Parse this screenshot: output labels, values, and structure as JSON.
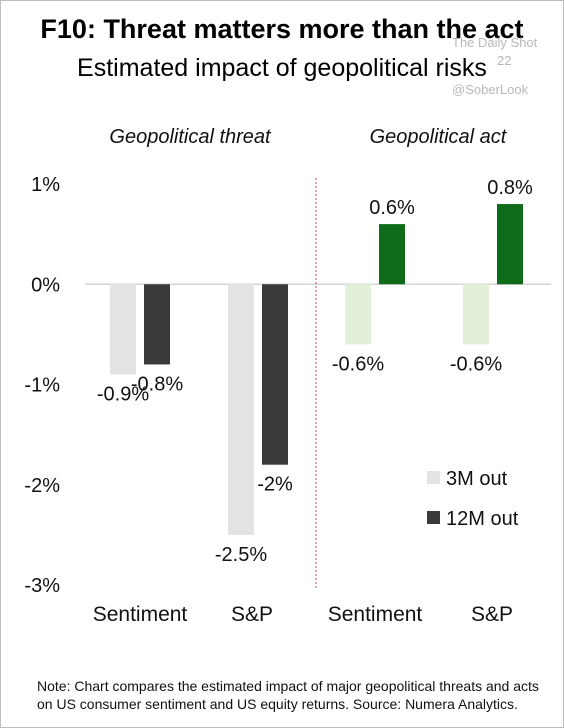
{
  "title": "F10: Threat matters more than the act",
  "subtitle": "Estimated impact of geopolitical risks",
  "watermark": {
    "source": "The Daily Shot",
    "handle": "@SoberLook",
    "partial_date": "22"
  },
  "note": "Note: Chart compares the estimated impact of major geopolitical threats and acts on US consumer sentiment and US equity returns. Source: Numera Analytics.",
  "colors": {
    "threat_3m": "#e3e3e3",
    "threat_12m": "#3a3a3a",
    "act_3m": "#e2f0d9",
    "act_12m": "#0e6b1a",
    "divider": "#c0504d"
  },
  "chart_data": {
    "type": "bar",
    "yticks": [
      "1%",
      "0%",
      "-1%",
      "-2%",
      "-3%"
    ],
    "ylim": [
      -3,
      1
    ],
    "panels": [
      {
        "label": "Geopolitical threat",
        "categories": [
          "Sentiment",
          "S&P"
        ],
        "series": [
          {
            "name": "3M out",
            "values": [
              -0.9,
              -2.5
            ],
            "labels": [
              "-0.9%",
              "-2.5%"
            ]
          },
          {
            "name": "12M out",
            "values": [
              -0.8,
              -1.8
            ],
            "labels": [
              "-0.8%",
              "-2%"
            ]
          }
        ]
      },
      {
        "label": "Geopolitical act",
        "categories": [
          "Sentiment",
          "S&P"
        ],
        "series": [
          {
            "name": "3M out",
            "values": [
              -0.6,
              -0.6
            ],
            "labels": [
              "-0.6%",
              "-0.6%"
            ]
          },
          {
            "name": "12M out",
            "values": [
              0.6,
              0.8
            ],
            "labels": [
              "0.6%",
              "0.8%"
            ]
          }
        ]
      }
    ],
    "legend": {
      "position": "bottom-right",
      "entries": [
        "3M out",
        "12M out"
      ]
    }
  }
}
